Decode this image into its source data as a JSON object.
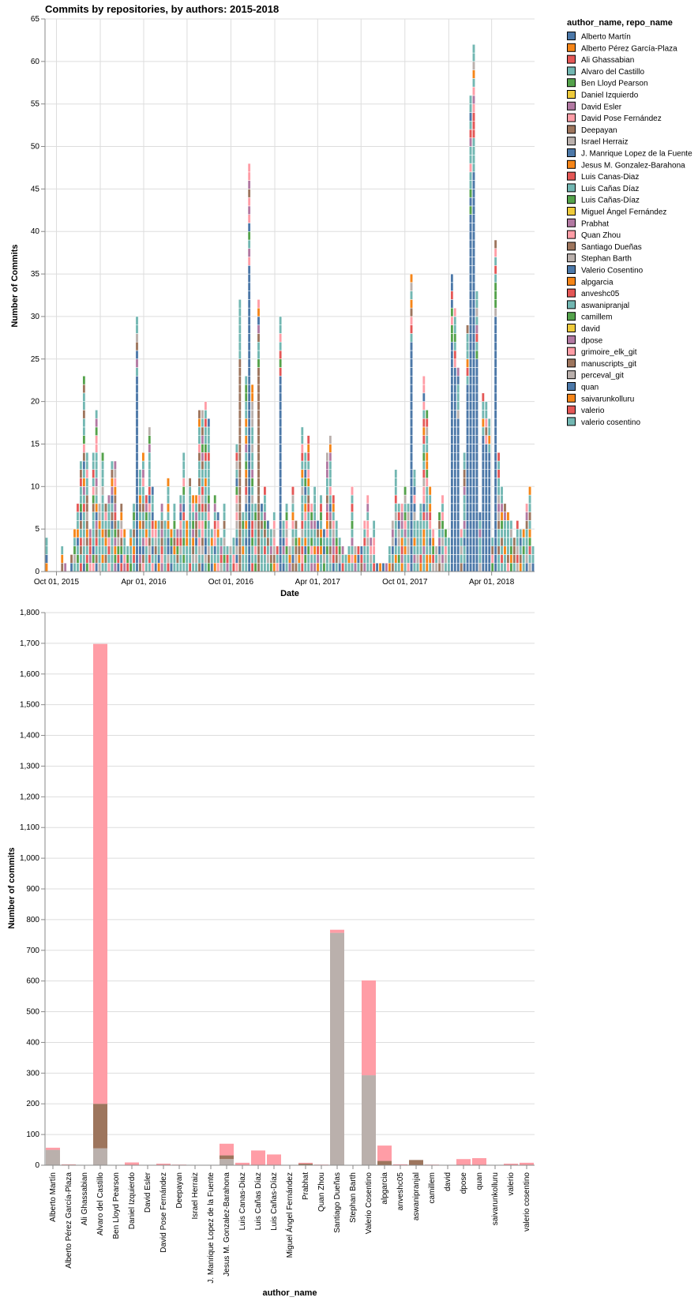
{
  "colors": {
    "blue": "#4c78a8",
    "orange": "#f58518",
    "red": "#e45756",
    "teal": "#72b7b2",
    "green": "#54a24b",
    "yellow": "#eeca3b",
    "purple": "#b279a2",
    "pink": "#ff9da6",
    "brown": "#9d755d",
    "gray": "#bab0ac"
  },
  "chart_data": [
    {
      "type": "bar",
      "stacked": true,
      "title": "Commits by repositories, by authors: 2015-2018",
      "xlabel": "Date",
      "ylabel": "Number of Commits",
      "ylim": [
        0,
        65
      ],
      "y_ticks": [
        0,
        5,
        10,
        15,
        20,
        25,
        30,
        35,
        40,
        45,
        50,
        55,
        60,
        65
      ],
      "x_tick_labels": [
        "Oct 01, 2015",
        "Apr 01, 2016",
        "Oct 01, 2016",
        "Apr 01, 2017",
        "Oct 01, 2017",
        "Apr 01, 2018"
      ],
      "x_range": [
        "2015-09-07",
        "2018-06-30"
      ],
      "legend": {
        "title": "author_name, repo_name",
        "placement": "right",
        "entries": [
          {
            "label": "Alberto Martín",
            "color": "#4c78a8"
          },
          {
            "label": "Alberto Pérez García-Plaza",
            "color": "#f58518"
          },
          {
            "label": "Ali Ghassabian",
            "color": "#e45756"
          },
          {
            "label": "Alvaro del Castillo",
            "color": "#72b7b2"
          },
          {
            "label": "Ben Lloyd Pearson",
            "color": "#54a24b"
          },
          {
            "label": "Daniel Izquierdo",
            "color": "#eeca3b"
          },
          {
            "label": "David Esler",
            "color": "#b279a2"
          },
          {
            "label": "David Pose Fernández",
            "color": "#ff9da6"
          },
          {
            "label": "Deepayan",
            "color": "#9d755d"
          },
          {
            "label": "Israel Herraiz",
            "color": "#bab0ac"
          },
          {
            "label": "J. Manrique Lopez de la Fuente",
            "color": "#4c78a8"
          },
          {
            "label": "Jesus M. Gonzalez-Barahona",
            "color": "#f58518"
          },
          {
            "label": "Luis Canas-Diaz",
            "color": "#e45756"
          },
          {
            "label": "Luis Cañas Díaz",
            "color": "#72b7b2"
          },
          {
            "label": "Luis Cañas-Díaz",
            "color": "#54a24b"
          },
          {
            "label": "Miguel Ángel Fernández",
            "color": "#eeca3b"
          },
          {
            "label": "Prabhat",
            "color": "#b279a2"
          },
          {
            "label": "Quan Zhou",
            "color": "#ff9da6"
          },
          {
            "label": "Santiago Dueñas",
            "color": "#9d755d"
          },
          {
            "label": "Stephan Barth",
            "color": "#bab0ac"
          },
          {
            "label": "Valerio Cosentino",
            "color": "#4c78a8"
          },
          {
            "label": "alpgarcia",
            "color": "#f58518"
          },
          {
            "label": "anveshc05",
            "color": "#e45756"
          },
          {
            "label": "aswanipranjal",
            "color": "#72b7b2"
          },
          {
            "label": "camillem",
            "color": "#54a24b"
          },
          {
            "label": "david",
            "color": "#eeca3b"
          },
          {
            "label": "dpose",
            "color": "#b279a2"
          },
          {
            "label": "grimoire_elk_git",
            "color": "#ff9da6"
          },
          {
            "label": "manuscripts_git",
            "color": "#9d755d"
          },
          {
            "label": "perceval_git",
            "color": "#bab0ac"
          },
          {
            "label": "quan",
            "color": "#4c78a8"
          },
          {
            "label": "saivarunkolluru",
            "color": "#f58518"
          },
          {
            "label": "valerio",
            "color": "#e45756"
          },
          {
            "label": "valerio cosentino",
            "color": "#72b7b2"
          }
        ]
      },
      "weekly_totals": [
        4,
        0,
        0,
        0,
        0,
        3,
        1,
        0,
        2,
        5,
        8,
        13,
        23,
        14,
        5,
        14,
        19,
        8,
        14,
        8,
        9,
        13,
        13,
        6,
        8,
        5,
        3,
        5,
        8,
        30,
        12,
        14,
        9,
        17,
        10,
        6,
        6,
        8,
        6,
        11,
        5,
        8,
        5,
        9,
        14,
        6,
        11,
        9,
        9,
        19,
        19,
        20,
        18,
        5,
        9,
        7,
        4,
        8,
        3,
        3,
        4,
        15,
        32,
        7,
        23,
        48,
        22,
        8,
        32,
        8,
        10,
        6,
        5,
        7,
        3,
        30,
        6,
        8,
        3,
        10,
        6,
        4,
        17,
        14,
        16,
        8,
        10,
        6,
        9,
        5,
        14,
        16,
        9,
        6,
        4,
        3,
        2,
        3,
        10,
        3,
        3,
        3,
        6,
        9,
        4,
        6,
        1,
        1,
        1,
        1,
        3,
        6,
        12,
        8,
        8,
        10,
        8,
        35,
        12,
        6,
        8,
        23,
        19,
        10,
        5,
        3,
        7,
        9,
        5,
        4,
        35,
        31,
        24,
        5,
        14,
        29,
        56,
        62,
        33,
        7,
        21,
        20,
        18,
        4,
        39,
        14,
        10,
        8,
        7,
        6,
        4,
        6,
        5,
        5,
        8,
        10,
        3
      ]
    },
    {
      "type": "bar",
      "stacked": true,
      "xlabel": "author_name",
      "ylabel": "Number of commits",
      "ylim": [
        0,
        1800
      ],
      "y_ticks": [
        0,
        100,
        200,
        300,
        400,
        500,
        600,
        700,
        800,
        900,
        1000,
        1100,
        1200,
        1300,
        1400,
        1500,
        1600,
        1700,
        1800
      ],
      "categories": [
        "Alberto Martín",
        "Alberto Pérez García-Plaza",
        "Ali Ghassabian",
        "Alvaro del Castillo",
        "Ben Lloyd Pearson",
        "Daniel Izquierdo",
        "David Esler",
        "David Pose Fernández",
        "Deepayan",
        "Israel Herraiz",
        "J. Manrique Lopez de la Fuente",
        "Jesus M. Gonzalez-Barahona",
        "Luis Canas-Diaz",
        "Luis Cañas Díaz",
        "Luis Cañas-Díaz",
        "Miguel Ángel Fernández",
        "Prabhat",
        "Quan Zhou",
        "Santiago Dueñas",
        "Stephan Barth",
        "Valerio Cosentino",
        "alpgarcia",
        "anveshc05",
        "aswanipranjal",
        "camillem",
        "david",
        "dpose",
        "quan",
        "saivarunkolluru",
        "valerio",
        "valerio cosentino"
      ],
      "series": [
        {
          "name": "perceval_git",
          "color": "#bab0ac",
          "values": [
            50,
            0,
            0,
            55,
            0,
            0,
            0,
            0,
            0,
            0,
            0,
            20,
            0,
            0,
            0,
            0,
            0,
            0,
            757,
            0,
            293,
            0,
            0,
            0,
            0,
            0,
            0,
            0,
            0,
            0,
            0
          ]
        },
        {
          "name": "manuscripts_git",
          "color": "#9d755d",
          "values": [
            0,
            2,
            0,
            145,
            0,
            0,
            0,
            0,
            0,
            0,
            0,
            12,
            0,
            0,
            0,
            0,
            5,
            0,
            0,
            0,
            0,
            14,
            0,
            17,
            0,
            0,
            0,
            0,
            0,
            0,
            0
          ]
        },
        {
          "name": "grimoire_elk_git",
          "color": "#ff9da6",
          "values": [
            7,
            1,
            1,
            1498,
            1,
            9,
            1,
            5,
            2,
            1,
            1,
            38,
            8,
            48,
            35,
            1,
            3,
            2,
            10,
            1,
            309,
            50,
            3,
            0,
            2,
            1,
            20,
            23,
            1,
            5,
            8
          ]
        }
      ]
    }
  ]
}
